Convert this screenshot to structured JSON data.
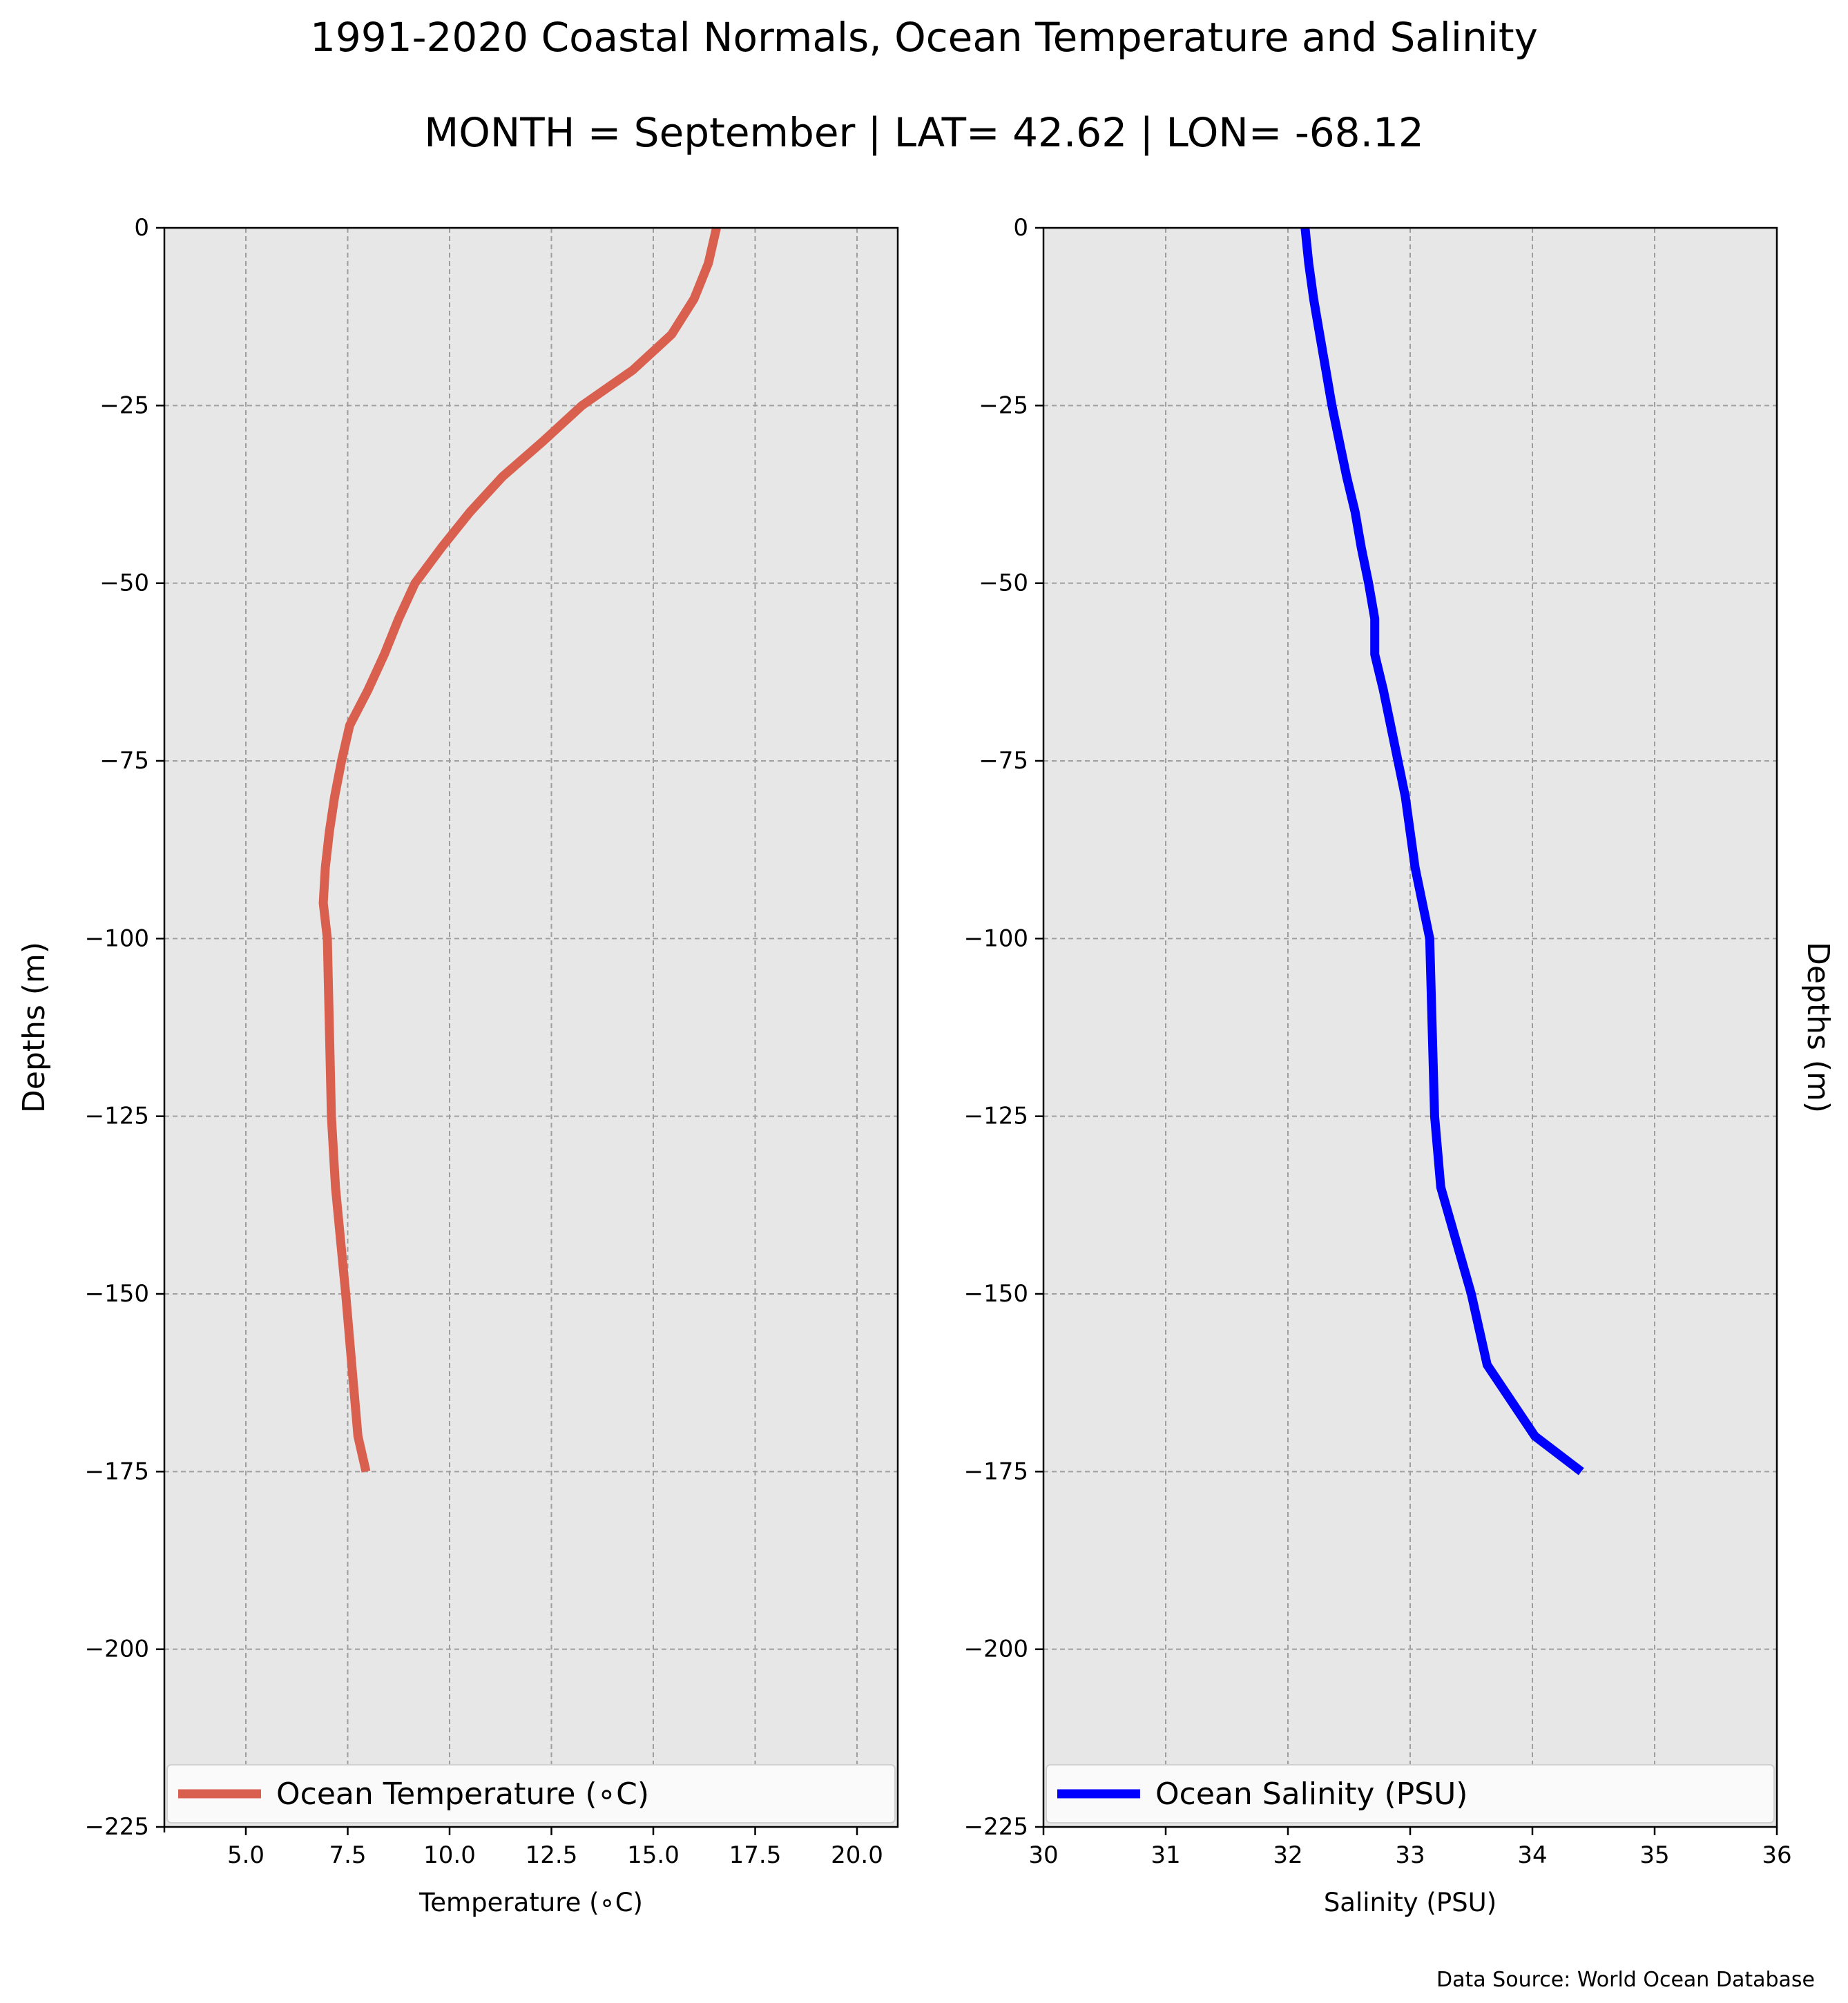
{
  "title": "1991-2020 Coastal Normals, Ocean Temperature and Salinity",
  "subtitle": "MONTH = September | LAT= 42.62 | LON= -68.12",
  "source": "Data Source: World Ocean Database",
  "colors": {
    "background": "#e7e7e7",
    "temperature": "#d95f4e",
    "salinity": "#0000ff",
    "grid": "#9e9e9e"
  },
  "chart_data": [
    {
      "type": "line",
      "xlabel": "Temperature ($^\\circ$C)",
      "xlabel_text": "Temperature (∘C)",
      "ylabel": "Depths (m)",
      "xlim": [
        3,
        21
      ],
      "ylim": [
        -225,
        0
      ],
      "xticks": [
        "5.0",
        "7.5",
        "10.0",
        "12.5",
        "15.0",
        "17.5",
        "20.0"
      ],
      "yticks": [
        "0",
        "−25",
        "−50",
        "−75",
        "−100",
        "−125",
        "−150",
        "−175",
        "−200",
        "−225"
      ],
      "grid": true,
      "legend": "bottom",
      "series": [
        {
          "name": "Ocean Temperature (∘C)",
          "color": "#d95f4e",
          "x": [
            16.55,
            16.35,
            16.0,
            15.45,
            14.5,
            13.25,
            12.3,
            11.3,
            10.5,
            9.8,
            9.15,
            8.75,
            8.4,
            8.0,
            7.55,
            7.35,
            7.18,
            7.05,
            6.95,
            6.9,
            7.0,
            7.1,
            7.2,
            7.45,
            7.6,
            7.75,
            7.95
          ],
          "y": [
            0,
            -5,
            -10,
            -15,
            -20,
            -25,
            -30,
            -35,
            -40,
            -45,
            -50,
            -55,
            -60,
            -65,
            -70,
            -75,
            -80,
            -85,
            -90,
            -95,
            -100,
            -125,
            -135,
            -150,
            -160,
            -170,
            -175
          ]
        }
      ]
    },
    {
      "type": "line",
      "xlabel": "Salinity (PSU)",
      "ylabel": "Depths (m)",
      "xlim": [
        30,
        36
      ],
      "ylim": [
        -225,
        0
      ],
      "xticks": [
        "30",
        "31",
        "32",
        "33",
        "34",
        "35",
        "36"
      ],
      "yticks": [
        "0",
        "−25",
        "−50",
        "−75",
        "−100",
        "−125",
        "−150",
        "−175",
        "−200",
        "−225"
      ],
      "grid": true,
      "legend": "bottom",
      "series": [
        {
          "name": "Ocean Salinity (PSU)",
          "color": "#0000ff",
          "x": [
            32.14,
            32.17,
            32.21,
            32.26,
            32.31,
            32.36,
            32.42,
            32.48,
            32.55,
            32.6,
            32.66,
            32.71,
            32.71,
            32.78,
            32.84,
            32.9,
            32.96,
            33.0,
            33.04,
            33.1,
            33.16,
            33.2,
            33.25,
            33.5,
            33.63,
            34.02,
            34.4
          ],
          "y": [
            0,
            -5,
            -10,
            -15,
            -20,
            -25,
            -30,
            -35,
            -40,
            -45,
            -50,
            -55,
            -60,
            -65,
            -70,
            -75,
            -80,
            -85,
            -90,
            -95,
            -100,
            -125,
            -135,
            -150,
            -160,
            -170,
            -175
          ]
        }
      ]
    }
  ]
}
